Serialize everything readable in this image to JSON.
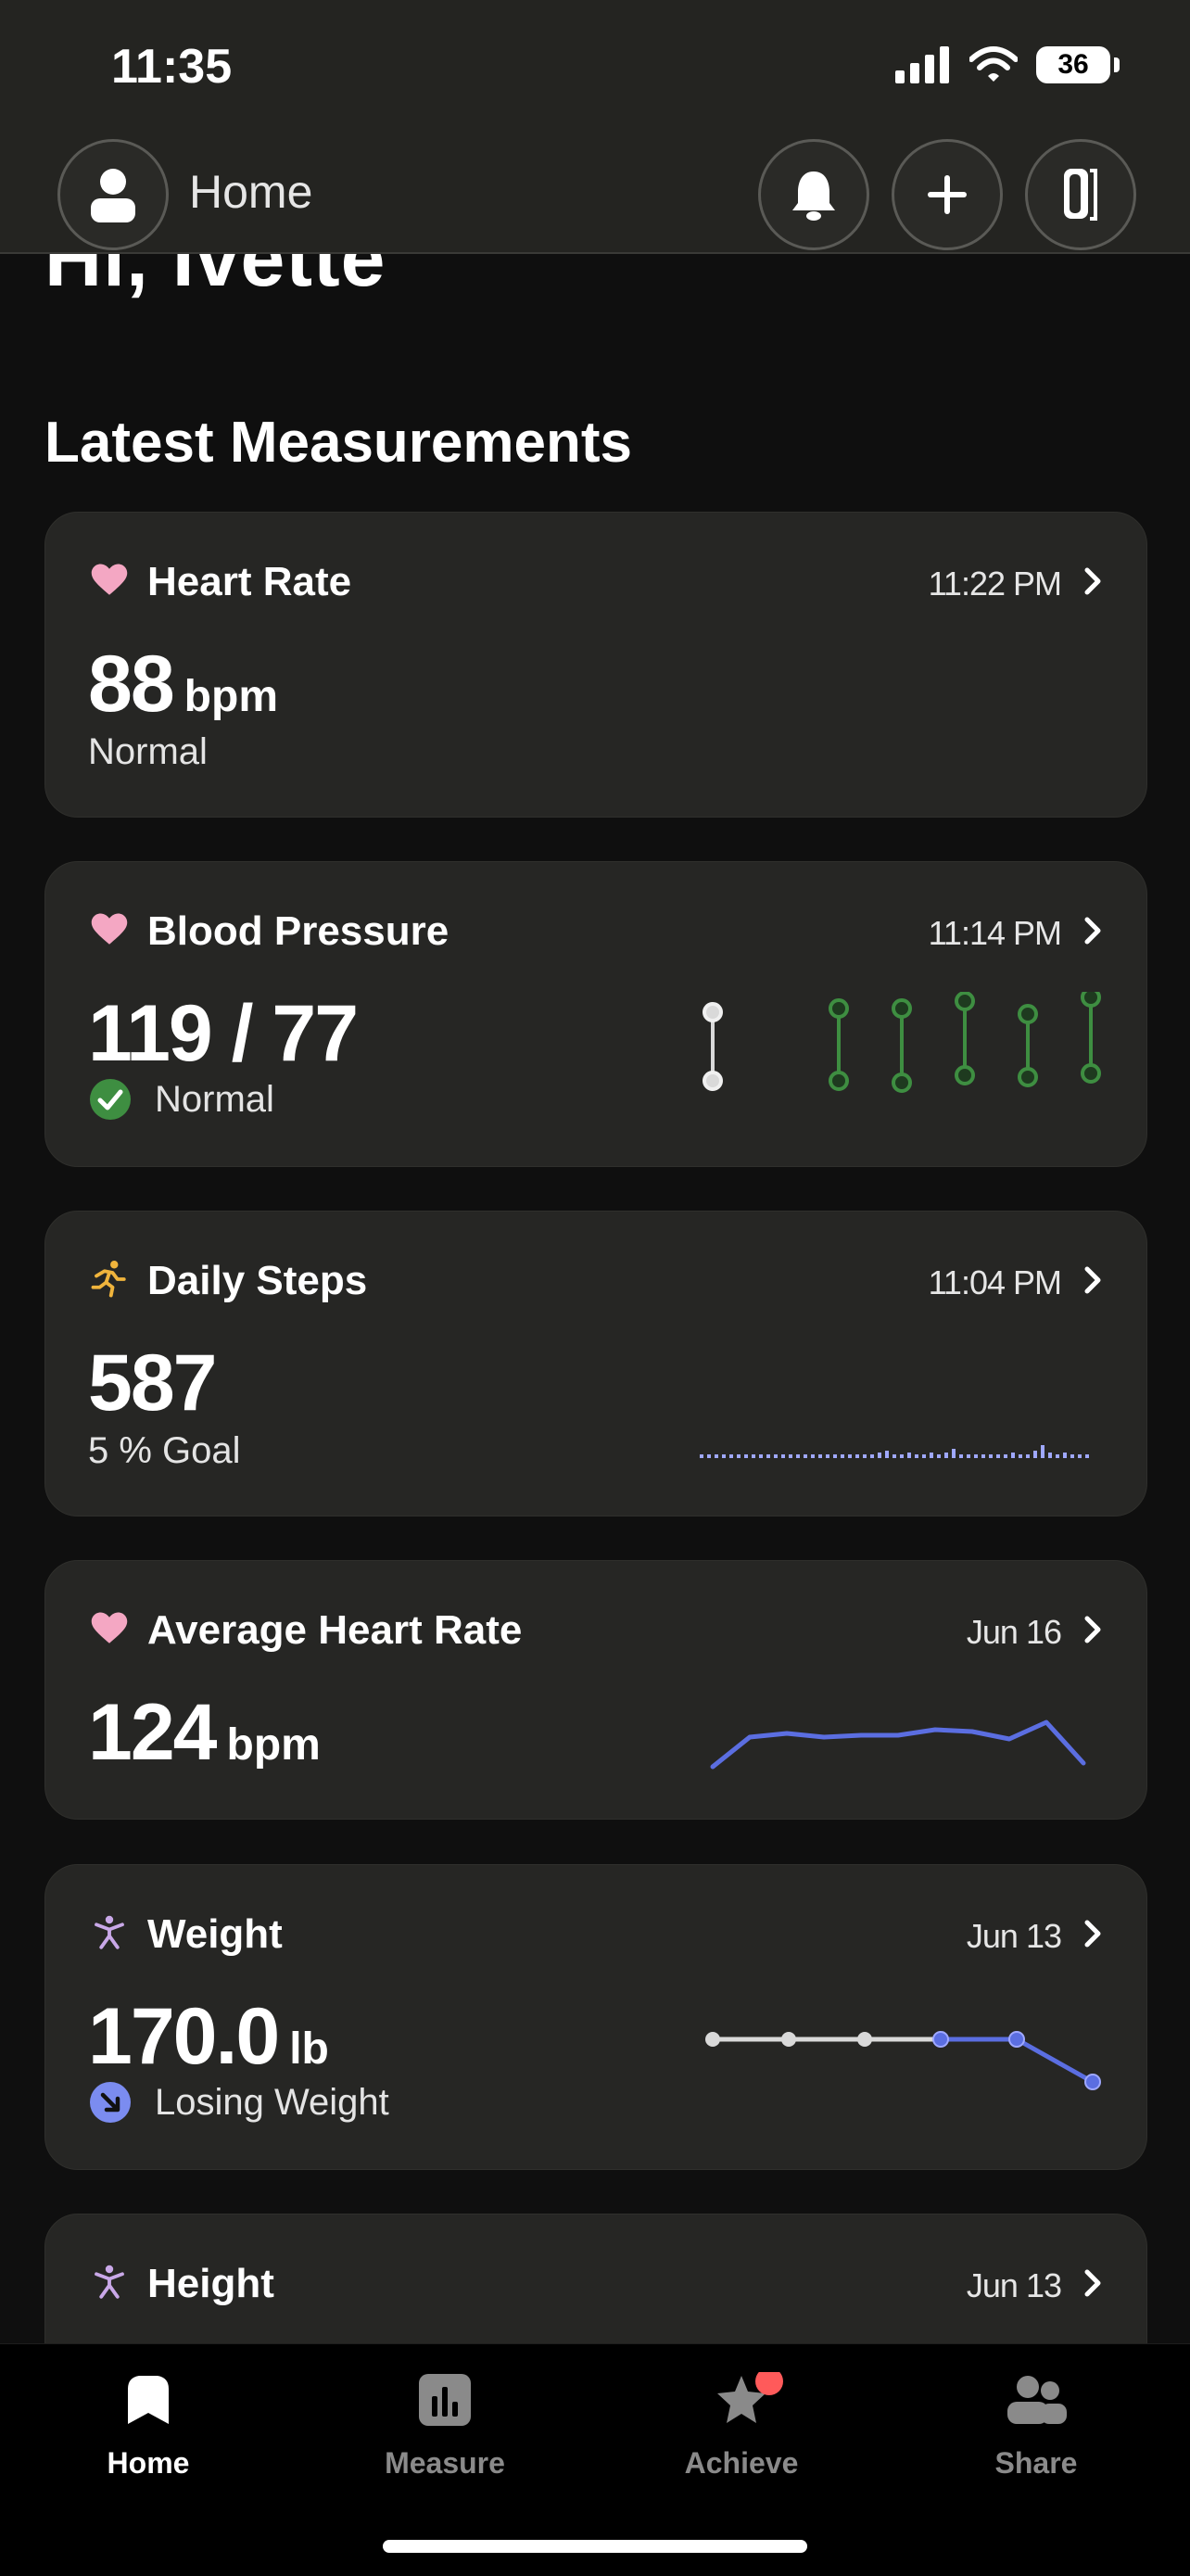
{
  "status": {
    "time": "11:35",
    "battery": "36"
  },
  "header": {
    "title": "Home"
  },
  "greeting": "Hi, Ivette",
  "section_title": "Latest Measurements",
  "cards": {
    "heart_rate": {
      "title": "Heart Rate",
      "time": "11:22 PM",
      "value": "88",
      "unit": "bpm",
      "status": "Normal"
    },
    "blood_pressure": {
      "title": "Blood Pressure",
      "time": "11:14 PM",
      "value": "119 / 77",
      "status": "Normal"
    },
    "daily_steps": {
      "title": "Daily Steps",
      "time": "11:04 PM",
      "value": "587",
      "goal": "5 % Goal"
    },
    "avg_heart_rate": {
      "title": "Average Heart Rate",
      "time": "Jun 16",
      "value": "124",
      "unit": "bpm"
    },
    "weight": {
      "title": "Weight",
      "time": "Jun 13",
      "value": "170.0",
      "unit": "lb",
      "status": "Losing Weight"
    },
    "height": {
      "title": "Height",
      "time": "Jun 13"
    }
  },
  "nav": {
    "home": "Home",
    "measure": "Measure",
    "achieve": "Achieve",
    "share": "Share"
  },
  "colors": {
    "heart": "#f4a7c3",
    "accent_blue": "#5b6ee1",
    "green": "#3e8e41",
    "steps": "#f0b43c",
    "person": "#c9a8e8",
    "badge_red": "#ff5a5a"
  }
}
